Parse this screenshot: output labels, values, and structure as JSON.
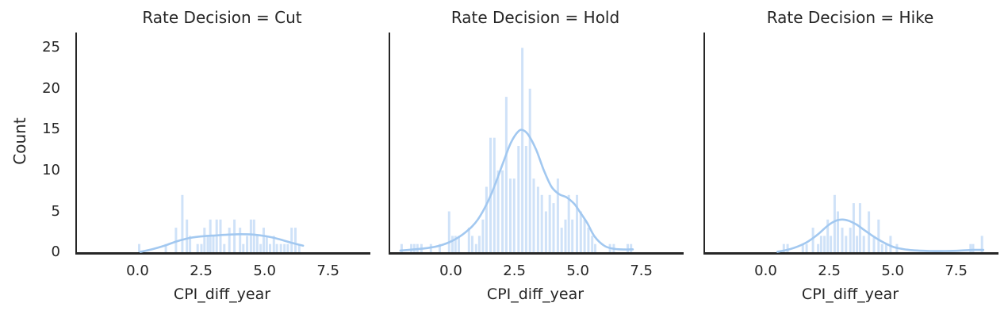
{
  "figure": {
    "ylabel": "Count",
    "xlabel": "CPI_diff_year",
    "y_tick_labels": [
      "0",
      "5",
      "10",
      "15",
      "20",
      "25"
    ],
    "y_tick_values": [
      0,
      5,
      10,
      15,
      20,
      25
    ],
    "x_tick_labels": [
      "0.0",
      "2.5",
      "5.0",
      "7.5"
    ],
    "x_tick_values": [
      0,
      2.5,
      5.0,
      7.5
    ],
    "colors": {
      "bar_fill": "#cfe2f8",
      "kde_line": "#a2c8f0",
      "axis_spine": "#262626",
      "text": "#262626"
    }
  },
  "chart_data": [
    {
      "type": "bar",
      "subtype": "histogram-with-kde",
      "title": "Rate Decision = Cut",
      "xlabel": "CPI_diff_year",
      "ylabel": "Count",
      "xlim": [
        -2.45,
        9.1
      ],
      "ylim": [
        0,
        26.87
      ],
      "bin_width": 0.095,
      "bars": [
        [
          0.0,
          1
        ],
        [
          1.05,
          1
        ],
        [
          1.45,
          3
        ],
        [
          1.7,
          7
        ],
        [
          1.88,
          4
        ],
        [
          2.0,
          2
        ],
        [
          2.3,
          1
        ],
        [
          2.45,
          1
        ],
        [
          2.57,
          3
        ],
        [
          2.7,
          2
        ],
        [
          2.8,
          4
        ],
        [
          2.92,
          2
        ],
        [
          3.05,
          4
        ],
        [
          3.2,
          4
        ],
        [
          3.35,
          1
        ],
        [
          3.55,
          3
        ],
        [
          3.75,
          4
        ],
        [
          3.97,
          3
        ],
        [
          4.1,
          1
        ],
        [
          4.25,
          2
        ],
        [
          4.4,
          4
        ],
        [
          4.52,
          4
        ],
        [
          4.65,
          2
        ],
        [
          4.78,
          1
        ],
        [
          4.9,
          3
        ],
        [
          5.02,
          2
        ],
        [
          5.15,
          1
        ],
        [
          5.3,
          2
        ],
        [
          5.42,
          1
        ],
        [
          5.58,
          1
        ],
        [
          5.72,
          1
        ],
        [
          5.85,
          1
        ],
        [
          6.0,
          3
        ],
        [
          6.15,
          3
        ],
        [
          6.3,
          1
        ]
      ],
      "kde": [
        [
          0.05,
          0.05
        ],
        [
          0.5,
          0.35
        ],
        [
          1.0,
          0.8
        ],
        [
          1.5,
          1.35
        ],
        [
          2.0,
          1.75
        ],
        [
          2.5,
          1.95
        ],
        [
          3.0,
          2.05
        ],
        [
          3.5,
          2.15
        ],
        [
          4.0,
          2.2
        ],
        [
          4.5,
          2.15
        ],
        [
          5.0,
          1.95
        ],
        [
          5.5,
          1.6
        ],
        [
          6.0,
          1.15
        ],
        [
          6.45,
          0.8
        ]
      ]
    },
    {
      "type": "bar",
      "subtype": "histogram-with-kde",
      "title": "Rate Decision = Hold",
      "xlabel": "CPI_diff_year",
      "ylabel": "Count",
      "xlim": [
        -2.45,
        9.1
      ],
      "ylim": [
        0,
        26.87
      ],
      "bin_width": 0.095,
      "bars": [
        [
          -2.0,
          1
        ],
        [
          -1.62,
          1
        ],
        [
          -1.5,
          1
        ],
        [
          -1.38,
          1
        ],
        [
          -1.22,
          1
        ],
        [
          -0.85,
          1
        ],
        [
          -0.5,
          1
        ],
        [
          -0.13,
          5
        ],
        [
          0.0,
          2
        ],
        [
          0.12,
          2
        ],
        [
          0.25,
          2
        ],
        [
          0.65,
          3
        ],
        [
          0.78,
          2
        ],
        [
          0.93,
          1
        ],
        [
          1.06,
          2
        ],
        [
          1.2,
          4
        ],
        [
          1.34,
          8
        ],
        [
          1.5,
          14
        ],
        [
          1.65,
          14
        ],
        [
          1.8,
          10
        ],
        [
          1.97,
          10
        ],
        [
          2.12,
          19
        ],
        [
          2.28,
          9
        ],
        [
          2.43,
          9
        ],
        [
          2.6,
          13
        ],
        [
          2.75,
          25
        ],
        [
          2.9,
          13
        ],
        [
          3.05,
          20
        ],
        [
          3.2,
          9
        ],
        [
          3.37,
          8
        ],
        [
          3.52,
          7
        ],
        [
          3.68,
          5
        ],
        [
          3.83,
          7
        ],
        [
          3.98,
          6
        ],
        [
          4.15,
          9
        ],
        [
          4.3,
          3
        ],
        [
          4.45,
          4
        ],
        [
          4.58,
          7
        ],
        [
          4.72,
          4
        ],
        [
          4.9,
          7
        ],
        [
          5.05,
          5
        ],
        [
          5.2,
          4
        ],
        [
          5.35,
          3
        ],
        [
          5.5,
          2
        ],
        [
          5.62,
          1
        ],
        [
          6.2,
          1
        ],
        [
          6.35,
          1
        ],
        [
          6.9,
          1
        ],
        [
          7.03,
          1
        ]
      ],
      "kde": [
        [
          -2.05,
          0.2
        ],
        [
          -1.5,
          0.35
        ],
        [
          -1.0,
          0.5
        ],
        [
          -0.5,
          0.8
        ],
        [
          0.0,
          1.4
        ],
        [
          0.5,
          2.4
        ],
        [
          1.0,
          4.0
        ],
        [
          1.5,
          6.9
        ],
        [
          2.0,
          11.0
        ],
        [
          2.3,
          13.4
        ],
        [
          2.6,
          14.8
        ],
        [
          2.8,
          14.9
        ],
        [
          3.0,
          14.3
        ],
        [
          3.3,
          12.5
        ],
        [
          3.6,
          10.0
        ],
        [
          3.9,
          8.0
        ],
        [
          4.2,
          7.1
        ],
        [
          4.5,
          6.7
        ],
        [
          4.8,
          5.9
        ],
        [
          5.0,
          5.0
        ],
        [
          5.3,
          3.6
        ],
        [
          5.6,
          1.9
        ],
        [
          6.0,
          0.75
        ],
        [
          6.4,
          0.4
        ],
        [
          6.8,
          0.33
        ],
        [
          7.1,
          0.35
        ]
      ]
    },
    {
      "type": "bar",
      "subtype": "histogram-with-kde",
      "title": "Rate Decision = Hike",
      "xlabel": "CPI_diff_year",
      "ylabel": "Count",
      "xlim": [
        -2.45,
        9.1
      ],
      "ylim": [
        0,
        26.87
      ],
      "bin_width": 0.095,
      "bars": [
        [
          0.65,
          1
        ],
        [
          0.8,
          1
        ],
        [
          1.4,
          1
        ],
        [
          1.55,
          1
        ],
        [
          1.8,
          3
        ],
        [
          2.0,
          1
        ],
        [
          2.12,
          2
        ],
        [
          2.25,
          2
        ],
        [
          2.38,
          4
        ],
        [
          2.5,
          2
        ],
        [
          2.65,
          7
        ],
        [
          2.78,
          5
        ],
        [
          2.95,
          3
        ],
        [
          3.1,
          2
        ],
        [
          3.27,
          3
        ],
        [
          3.4,
          6
        ],
        [
          3.53,
          2
        ],
        [
          3.65,
          6
        ],
        [
          3.8,
          2
        ],
        [
          4.0,
          5
        ],
        [
          4.2,
          2
        ],
        [
          4.38,
          4
        ],
        [
          4.52,
          1
        ],
        [
          4.68,
          1
        ],
        [
          4.85,
          2
        ],
        [
          5.1,
          1
        ],
        [
          8.0,
          1
        ],
        [
          8.1,
          1
        ],
        [
          8.45,
          2
        ]
      ],
      "kde": [
        [
          0.4,
          0.05
        ],
        [
          0.8,
          0.3
        ],
        [
          1.2,
          0.7
        ],
        [
          1.6,
          1.3
        ],
        [
          2.0,
          2.2
        ],
        [
          2.4,
          3.3
        ],
        [
          2.7,
          3.85
        ],
        [
          2.95,
          4.0
        ],
        [
          3.2,
          3.85
        ],
        [
          3.5,
          3.4
        ],
        [
          3.8,
          2.75
        ],
        [
          4.1,
          2.1
        ],
        [
          4.4,
          1.5
        ],
        [
          4.7,
          1.0
        ],
        [
          5.0,
          0.6
        ],
        [
          5.4,
          0.35
        ],
        [
          5.8,
          0.22
        ],
        [
          6.4,
          0.15
        ],
        [
          7.0,
          0.15
        ],
        [
          7.6,
          0.2
        ],
        [
          8.1,
          0.28
        ],
        [
          8.5,
          0.28
        ]
      ]
    }
  ]
}
